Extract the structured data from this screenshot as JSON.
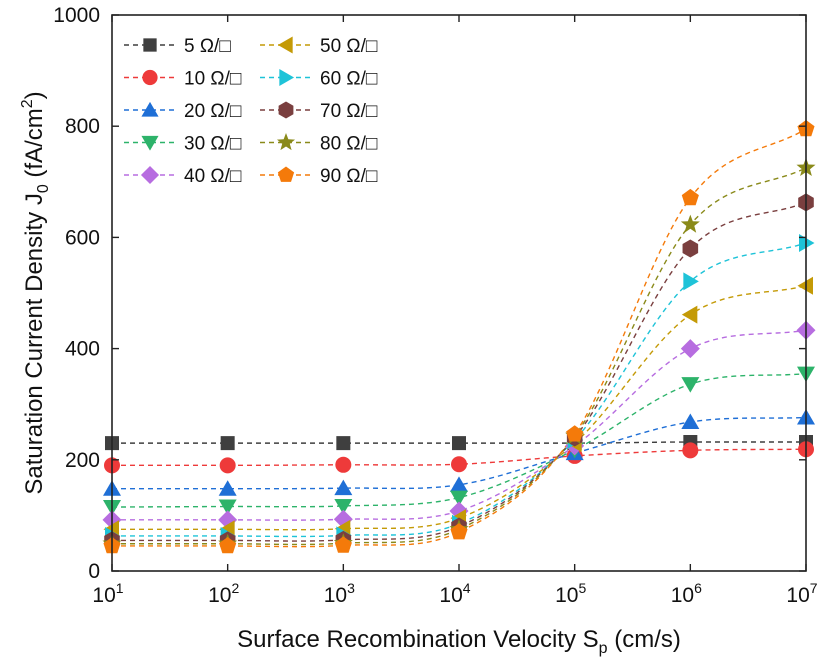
{
  "chart_data": {
    "type": "line",
    "title": "",
    "xlabel": {
      "main": "Surface Recombination Velocity S",
      "sub": "p",
      "unit": " (cm/s)"
    },
    "ylabel": {
      "main": "Saturation Current Density J",
      "sub": "0",
      "unit_pre": " (fA/cm",
      "sup": "2",
      "unit_post": ")"
    },
    "xscale": "log",
    "xlim_exp": [
      1,
      7
    ],
    "ylim": [
      0,
      1000
    ],
    "x_ticks": [
      {
        "exp": 1,
        "base": "10",
        "sup": "1"
      },
      {
        "exp": 2,
        "base": "10",
        "sup": "2"
      },
      {
        "exp": 3,
        "base": "10",
        "sup": "3"
      },
      {
        "exp": 4,
        "base": "10",
        "sup": "4"
      },
      {
        "exp": 5,
        "base": "10",
        "sup": "5"
      },
      {
        "exp": 6,
        "base": "10",
        "sup": "6"
      },
      {
        "exp": 7,
        "base": "10",
        "sup": "7"
      }
    ],
    "y_ticks": [
      {
        "value": 0,
        "label": "0"
      },
      {
        "value": 200,
        "label": "200"
      },
      {
        "value": 400,
        "label": "400"
      },
      {
        "value": 600,
        "label": "600"
      },
      {
        "value": 800,
        "label": "800"
      },
      {
        "value": 1000,
        "label": "1000"
      }
    ],
    "x_exponents": [
      1,
      2,
      3,
      4,
      5,
      6,
      7
    ],
    "legend_position": "top-left",
    "series": [
      {
        "name": "5 Ω/□",
        "color": "#3f3f3f",
        "marker": "square",
        "values": [
          230,
          230,
          230,
          230,
          230,
          232,
          232
        ]
      },
      {
        "name": "10 Ω/□",
        "color": "#ee3a3a",
        "marker": "circle",
        "values": [
          190,
          190,
          191,
          192,
          207,
          217,
          219
        ]
      },
      {
        "name": "20 Ω/□",
        "color": "#1f6fd6",
        "marker": "triangle-up",
        "values": [
          148,
          148,
          149,
          155,
          212,
          268,
          276
        ]
      },
      {
        "name": "30 Ω/□",
        "color": "#2db36a",
        "marker": "triangle-down",
        "values": [
          115,
          116,
          117,
          132,
          218,
          336,
          355
        ]
      },
      {
        "name": "40 Ω/□",
        "color": "#b76de0",
        "marker": "diamond",
        "values": [
          92,
          92,
          93,
          108,
          225,
          400,
          433
        ]
      },
      {
        "name": "50 Ω/□",
        "color": "#c49a06",
        "marker": "triangle-left",
        "values": [
          75,
          75,
          76,
          95,
          230,
          461,
          513
        ]
      },
      {
        "name": "60 Ω/□",
        "color": "#1ec3d8",
        "marker": "triangle-right",
        "values": [
          63,
          63,
          64,
          85,
          236,
          521,
          590
        ]
      },
      {
        "name": "70 Ω/□",
        "color": "#7a3f3f",
        "marker": "hexagon",
        "values": [
          55,
          55,
          56,
          80,
          240,
          580,
          663
        ]
      },
      {
        "name": "80 Ω/□",
        "color": "#8a8a1a",
        "marker": "star",
        "values": [
          49,
          49,
          50,
          75,
          243,
          623,
          725
        ]
      },
      {
        "name": "90 Ω/□",
        "color": "#f47a0a",
        "marker": "pentagon",
        "values": [
          45,
          45,
          46,
          70,
          246,
          671,
          795
        ]
      }
    ]
  }
}
